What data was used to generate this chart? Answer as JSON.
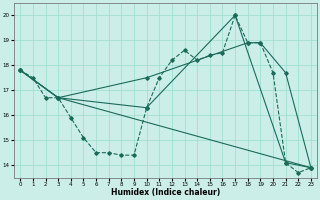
{
  "xlabel": "Humidex (Indice chaleur)",
  "bg_color": "#cceee8",
  "grid_color": "#99ddcc",
  "line_color": "#1a6b5a",
  "xlim": [
    -0.5,
    23.5
  ],
  "ylim": [
    13.5,
    20.5
  ],
  "xticks": [
    0,
    1,
    2,
    3,
    4,
    5,
    6,
    7,
    8,
    9,
    10,
    11,
    12,
    13,
    14,
    15,
    16,
    17,
    18,
    19,
    20,
    21,
    22,
    23
  ],
  "yticks": [
    14,
    15,
    16,
    17,
    18,
    19,
    20
  ],
  "line1_x": [
    0,
    1,
    2,
    3,
    4,
    5,
    6,
    7,
    8,
    9,
    10,
    11,
    12,
    13,
    14,
    15,
    16,
    17,
    18,
    19,
    20,
    21,
    22,
    23
  ],
  "line1_y": [
    17.8,
    17.5,
    16.7,
    16.7,
    15.9,
    15.1,
    14.5,
    14.5,
    14.4,
    14.4,
    16.3,
    17.5,
    18.2,
    18.6,
    18.2,
    18.4,
    18.5,
    20.0,
    18.9,
    18.9,
    17.7,
    14.1,
    13.7,
    13.9
  ],
  "line2_x": [
    0,
    3,
    10,
    17,
    21,
    23
  ],
  "line2_y": [
    17.8,
    16.7,
    16.3,
    20.0,
    14.1,
    13.9
  ],
  "line3_x": [
    0,
    3,
    10,
    18,
    19,
    21,
    23
  ],
  "line3_y": [
    17.8,
    16.7,
    17.5,
    18.9,
    18.9,
    17.7,
    13.9
  ],
  "line4_x": [
    0,
    3,
    23
  ],
  "line4_y": [
    17.8,
    16.7,
    13.9
  ]
}
